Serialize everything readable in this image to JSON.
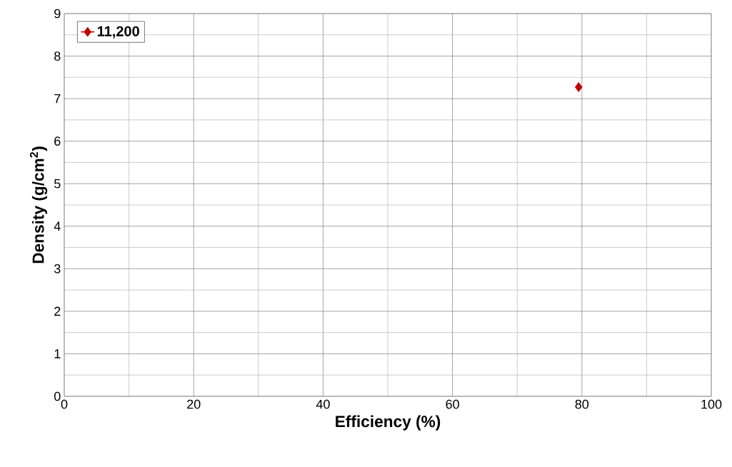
{
  "chart_data": {
    "type": "scatter",
    "xlabel": "Efficiency (%)",
    "ylabel": "Density (g/cm$^{2}$)",
    "x": [
      79.5
    ],
    "series": [
      {
        "name": "11,200",
        "color": "#c00000",
        "values": [
          7.27
        ]
      }
    ],
    "xlim": [
      0,
      100
    ],
    "ylim": [
      0,
      9
    ],
    "xticks": [
      0,
      20,
      40,
      60,
      80,
      100
    ],
    "yticks": [
      0,
      1,
      2,
      3,
      4,
      5,
      6,
      7,
      8,
      9
    ],
    "grid": true,
    "legend": "top left",
    "marker": "diamond"
  }
}
